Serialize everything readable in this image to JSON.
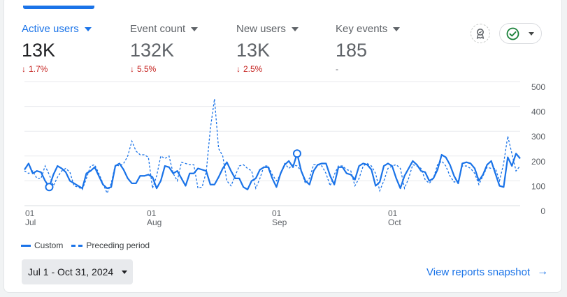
{
  "metrics": [
    {
      "label": "Active users",
      "value": "13K",
      "delta": "1.7%",
      "arrow": "↓"
    },
    {
      "label": "Event count",
      "value": "132K",
      "delta": "5.5%",
      "arrow": "↓"
    },
    {
      "label": "New users",
      "value": "13K",
      "delta": "2.5%",
      "arrow": "↓"
    },
    {
      "label": "Key events",
      "value": "185",
      "delta": "-",
      "arrow": ""
    }
  ],
  "chart_data": {
    "type": "line",
    "y_ticks": [
      "500",
      "400",
      "300",
      "200",
      "100",
      "0"
    ],
    "ylim": [
      0,
      500
    ],
    "x_ticks": [
      {
        "day": "01",
        "month": "Jul"
      },
      {
        "day": "01",
        "month": "Aug"
      },
      {
        "day": "01",
        "month": "Sep"
      },
      {
        "day": "01",
        "month": "Oct"
      }
    ],
    "series": [
      {
        "name": "Custom",
        "style": "solid",
        "values": [
          145,
          170,
          130,
          140,
          135,
          100,
          75,
          125,
          160,
          150,
          135,
          100,
          90,
          80,
          70,
          130,
          140,
          155,
          120,
          85,
          70,
          75,
          160,
          170,
          145,
          110,
          90,
          90,
          120,
          120,
          125,
          115,
          70,
          100,
          160,
          155,
          130,
          140,
          110,
          80,
          130,
          130,
          150,
          145,
          140,
          85,
          85,
          115,
          150,
          175,
          140,
          110,
          110,
          75,
          65,
          100,
          110,
          145,
          155,
          155,
          110,
          75,
          130,
          165,
          180,
          155,
          210,
          140,
          100,
          85,
          140,
          165,
          170,
          170,
          120,
          85,
          155,
          155,
          130,
          125,
          105,
          160,
          170,
          165,
          145,
          80,
          95,
          160,
          170,
          160,
          110,
          70,
          120,
          150,
          180,
          165,
          140,
          135,
          100,
          110,
          145,
          205,
          195,
          165,
          120,
          90,
          170,
          175,
          170,
          150,
          100,
          125,
          165,
          180,
          130,
          80,
          75,
          195,
          160,
          210,
          190
        ]
      },
      {
        "name": "Preceding period",
        "style": "dashed",
        "values": [
          140,
          130,
          140,
          110,
          110,
          160,
          125,
          80,
          115,
          140,
          150,
          135,
          80,
          75,
          65,
          110,
          160,
          165,
          130,
          90,
          50,
          90,
          165,
          160,
          170,
          200,
          260,
          220,
          205,
          205,
          195,
          70,
          120,
          200,
          190,
          200,
          130,
          100,
          175,
          170,
          165,
          165,
          70,
          75,
          135,
          310,
          430,
          230,
          200,
          100,
          80,
          120,
          160,
          165,
          150,
          140,
          70,
          110,
          160,
          160,
          125,
          100,
          125,
          170,
          150,
          165,
          160,
          140,
          90,
          110,
          165,
          165,
          160,
          130,
          80,
          125,
          160,
          160,
          145,
          140,
          80,
          110,
          160,
          170,
          160,
          130,
          60,
          100,
          150,
          160,
          165,
          150,
          70,
          110,
          165,
          160,
          150,
          105,
          90,
          110,
          165,
          180,
          160,
          120,
          95,
          100,
          160,
          160,
          150,
          130,
          85,
          120,
          155,
          150,
          150,
          100,
          170,
          280,
          210,
          140,
          160
        ]
      }
    ],
    "legend": [
      "Custom",
      "Preceding period"
    ]
  },
  "date_range": "Jul 1 - Oct 31, 2024",
  "snapshot_link": "View reports snapshot",
  "colors": {
    "accent": "#1a73e8",
    "negative": "#c5221f",
    "success": "#188038"
  }
}
